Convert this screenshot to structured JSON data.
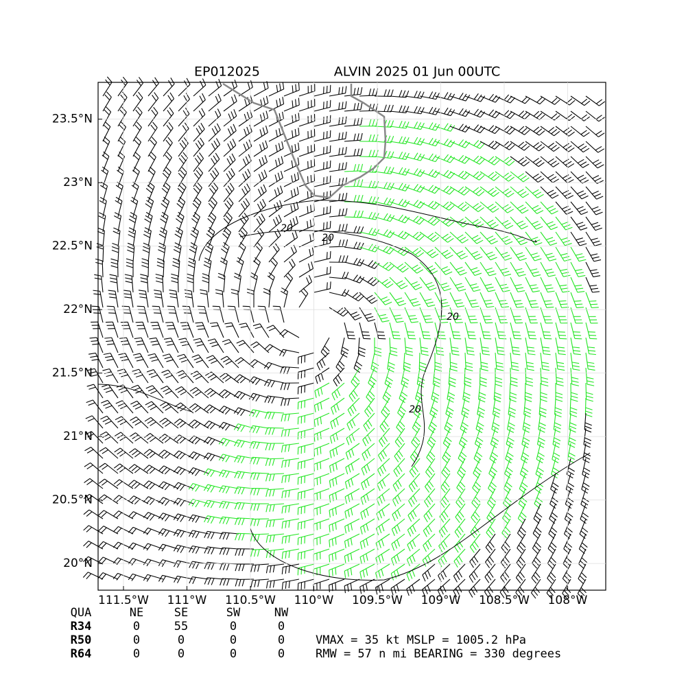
{
  "header": {
    "storm_id": "EP012025",
    "title": "ALVIN 2025 01 Jun 00UTC"
  },
  "axes": {
    "xlim": [
      -111.7,
      -107.7
    ],
    "ylim": [
      19.79,
      23.79
    ],
    "xticks": [
      {
        "value": -111.5,
        "label": "111.5°W"
      },
      {
        "value": -111,
        "label": "111°W"
      },
      {
        "value": -110.5,
        "label": "110.5°W"
      },
      {
        "value": -110,
        "label": "110°W"
      },
      {
        "value": -109.5,
        "label": "109.5°W"
      },
      {
        "value": -109,
        "label": "109°W"
      },
      {
        "value": -108.5,
        "label": "108.5°W"
      },
      {
        "value": -108,
        "label": "108°W"
      }
    ],
    "yticks": [
      {
        "value": 20,
        "label": "20°N"
      },
      {
        "value": 20.5,
        "label": "20.5°N"
      },
      {
        "value": 21,
        "label": "21°N"
      },
      {
        "value": 21.5,
        "label": "21.5°N"
      },
      {
        "value": 22,
        "label": "22°N"
      },
      {
        "value": 22.5,
        "label": "22.5°N"
      },
      {
        "value": 23,
        "label": "23°N"
      },
      {
        "value": 23.5,
        "label": "23.5°N"
      }
    ]
  },
  "contour_labels": [
    20,
    20,
    20,
    20
  ],
  "table": {
    "header": [
      "QUA",
      "NE",
      "SE",
      "SW",
      "NW"
    ],
    "rows": [
      [
        "R34",
        0,
        55,
        0,
        0
      ],
      [
        "R50",
        0,
        0,
        0,
        0
      ],
      [
        "R64",
        0,
        0,
        0,
        0
      ]
    ]
  },
  "info": [
    "VMAX =  35 kt MSLP = 1005.2 hPa",
    "RMW =  57 n mi BEARING = 330 degrees"
  ]
}
